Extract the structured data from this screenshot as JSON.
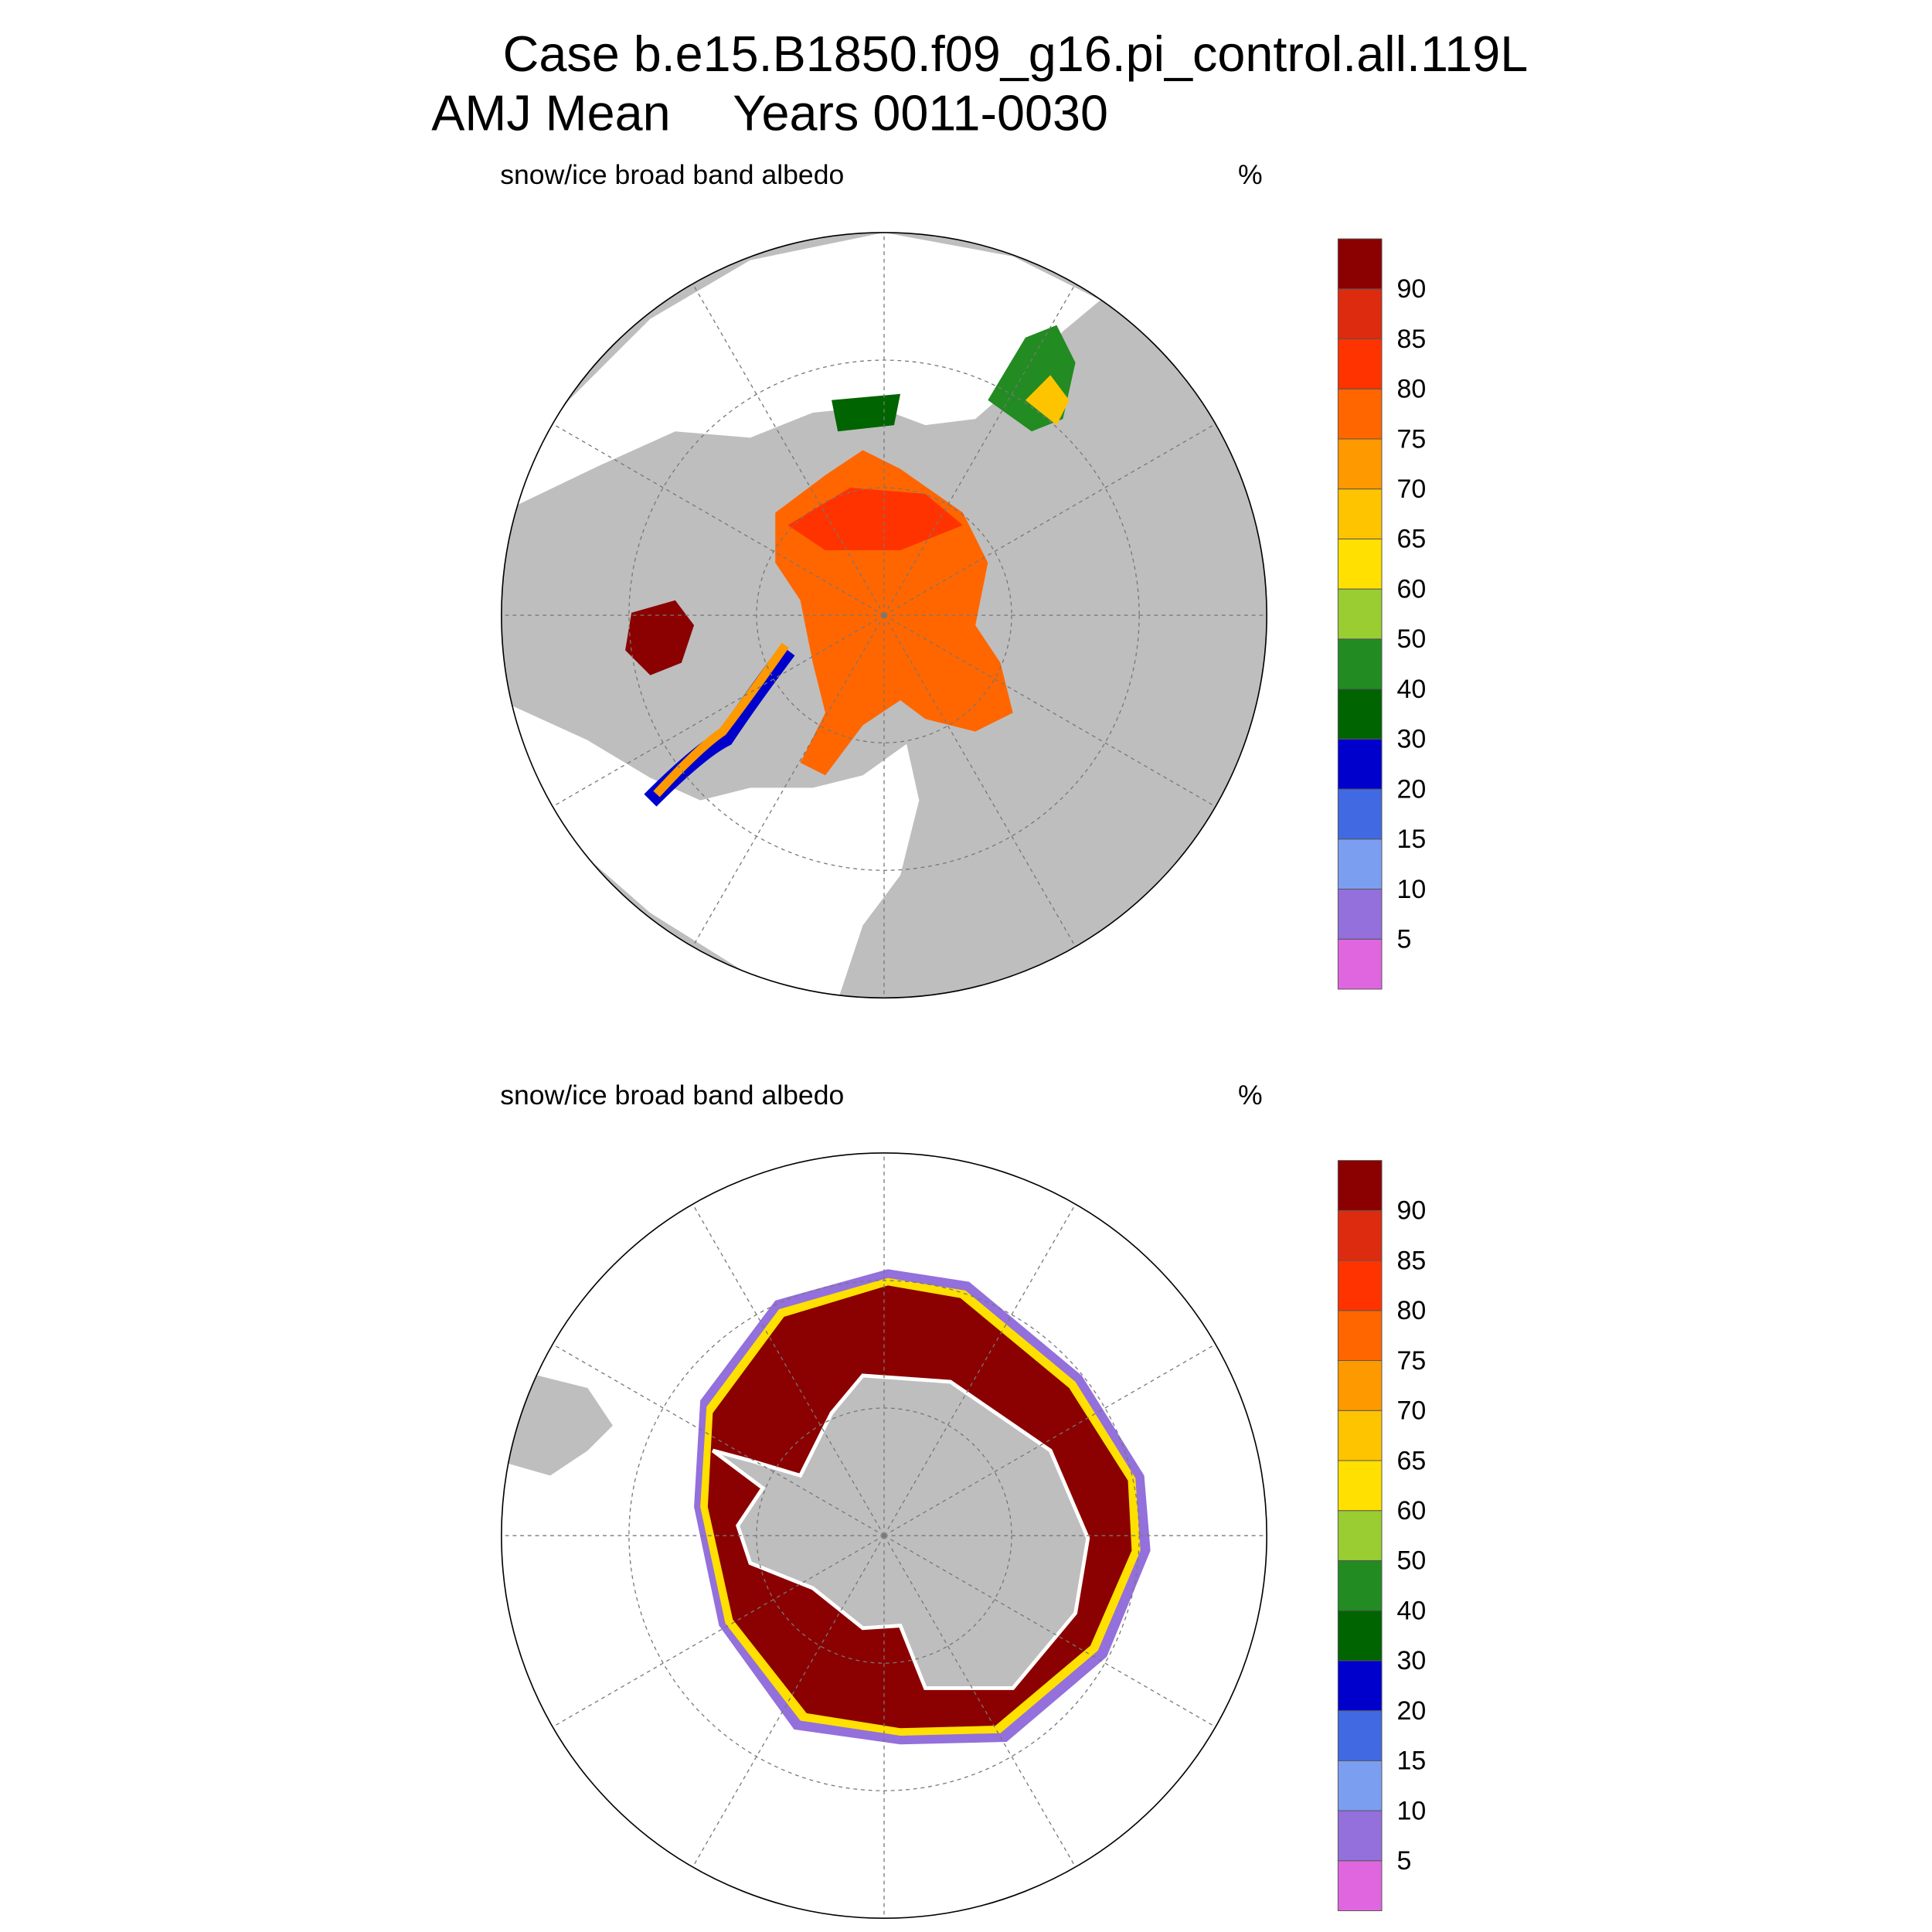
{
  "header": {
    "title": "Case b.e15.B1850.f09_g16.pi_control.all.119L",
    "season": "AMJ Mean",
    "years": "Years 0011-0030"
  },
  "panels": [
    {
      "left_title": "snow/ice broad band albedo",
      "units": "%",
      "colorbar": {
        "levels": [
          5,
          10,
          15,
          20,
          30,
          40,
          50,
          60,
          65,
          70,
          75,
          80,
          85,
          90
        ],
        "colors": [
          "#e066e0",
          "#9370db",
          "#7b9ef0",
          "#4169e1",
          "#0000cd",
          "#006400",
          "#228b22",
          "#9acd32",
          "#ffe000",
          "#ffc400",
          "#ff9900",
          "#ff6600",
          "#ff3300",
          "#dd2b10",
          "#8b0000"
        ]
      }
    },
    {
      "left_title": "snow/ice broad band albedo",
      "units": "%",
      "colorbar": {
        "levels": [
          5,
          10,
          15,
          20,
          30,
          40,
          50,
          60,
          65,
          70,
          75,
          80,
          85,
          90
        ],
        "colors": [
          "#e066e0",
          "#9370db",
          "#7b9ef0",
          "#4169e1",
          "#0000cd",
          "#006400",
          "#228b22",
          "#9acd32",
          "#ffe000",
          "#ffc400",
          "#ff9900",
          "#ff6600",
          "#ff3300",
          "#dd2b10",
          "#8b0000"
        ]
      }
    }
  ]
}
